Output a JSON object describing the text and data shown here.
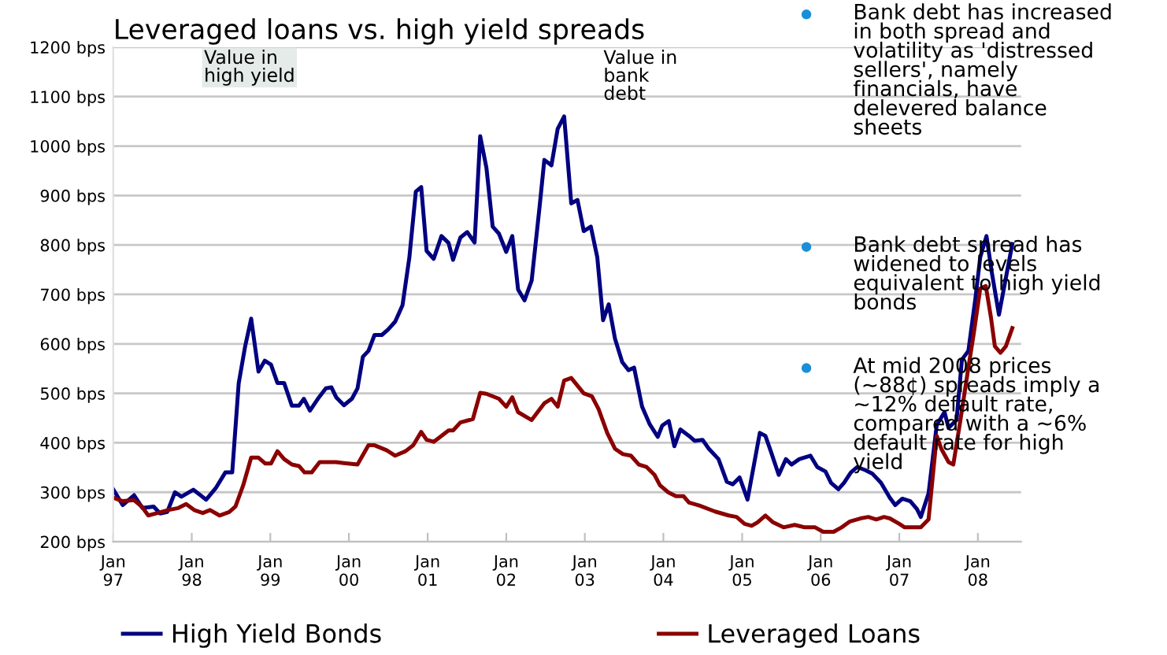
{
  "chart_data": {
    "type": "line",
    "title": "Leveraged loans vs. high yield spreads",
    "series": [
      {
        "name": "High Yield Bonds",
        "color": "#000080",
        "x": [
          "1997-01-01",
          "1997-02-14",
          "1997-04-08",
          "1997-05-17",
          "1997-07-08",
          "1997-08-07",
          "1997-09-09",
          "1997-10-15",
          "1997-11-14",
          "1998-01-08",
          "1998-03-09",
          "1998-04-22",
          "1998-06-06",
          "1998-07-08",
          "1998-08-07",
          "1998-09-06",
          "1998-10-04",
          "1998-11-07",
          "1998-12-06",
          "1999-01-04",
          "1999-02-03",
          "1999-03-06",
          "1999-04-11",
          "1999-05-14",
          "1999-06-06",
          "1999-07-04",
          "1999-08-10",
          "1999-09-16",
          "1999-10-12",
          "1999-11-03",
          "1999-12-09",
          "2000-01-15",
          "2000-02-10",
          "2000-03-06",
          "2000-04-01",
          "2000-04-29",
          "2000-06-02",
          "2000-07-01",
          "2000-08-03",
          "2000-09-06",
          "2000-10-08",
          "2000-11-07",
          "2000-12-02",
          "2000-12-27",
          "2001-01-29",
          "2001-03-06",
          "2001-04-08",
          "2001-04-29",
          "2001-06-02",
          "2001-07-04",
          "2001-08-07",
          "2001-09-02",
          "2001-10-01",
          "2001-10-30",
          "2001-11-28",
          "2002-01-01",
          "2002-01-29",
          "2002-02-25",
          "2002-03-27",
          "2002-04-29",
          "2002-06-06",
          "2002-06-27",
          "2002-07-30",
          "2002-08-28",
          "2002-09-27",
          "2002-10-30",
          "2002-11-28",
          "2002-12-27",
          "2003-01-29",
          "2003-02-28",
          "2003-03-27",
          "2003-04-22",
          "2003-05-21",
          "2003-06-24",
          "2003-07-23",
          "2003-08-18",
          "2003-09-24",
          "2003-10-30",
          "2003-12-06",
          "2003-12-27",
          "2004-01-26",
          "2004-02-21",
          "2004-03-20",
          "2004-04-29",
          "2004-05-25",
          "2004-07-01",
          "2004-07-30",
          "2004-09-13",
          "2004-10-22",
          "2004-11-18",
          "2004-12-20",
          "2005-01-26",
          "2005-03-24",
          "2005-04-19",
          "2005-05-14",
          "2005-06-20",
          "2005-07-23",
          "2005-08-18",
          "2005-09-24",
          "2005-11-14",
          "2005-12-16",
          "2006-01-23",
          "2006-02-18",
          "2006-03-24",
          "2006-04-19",
          "2006-05-21",
          "2006-06-20",
          "2006-07-26",
          "2006-08-28",
          "2006-10-08",
          "2006-11-18",
          "2006-12-13",
          "2007-01-15",
          "2007-02-21",
          "2007-03-24",
          "2007-04-11",
          "2007-05-17",
          "2007-06-24",
          "2007-07-30",
          "2007-08-18",
          "2007-09-24",
          "2007-10-19",
          "2007-11-18",
          "2007-12-20",
          "2008-01-12",
          "2008-02-10",
          "2008-03-06",
          "2008-04-08",
          "2008-05-03",
          "2008-06-09"
        ],
        "values": [
          306,
          274,
          294,
          268,
          271,
          257,
          260,
          300,
          291,
          305,
          285,
          308,
          340,
          340,
          520,
          595,
          651,
          544,
          566,
          558,
          521,
          521,
          475,
          475,
          489,
          465,
          489,
          510,
          512,
          492,
          476,
          489,
          510,
          574,
          586,
          618,
          618,
          629,
          645,
          678,
          775,
          908,
          917,
          788,
          772,
          818,
          804,
          770,
          815,
          826,
          805,
          1020,
          956,
          837,
          823,
          786,
          818,
          710,
          688,
          728,
          882,
          972,
          961,
          1035,
          1060,
          884,
          891,
          828,
          837,
          775,
          648,
          680,
          611,
          563,
          547,
          552,
          473,
          437,
          412,
          435,
          444,
          393,
          427,
          414,
          404,
          406,
          388,
          367,
          321,
          316,
          330,
          285,
          420,
          414,
          383,
          335,
          367,
          356,
          367,
          374,
          351,
          342,
          319,
          306,
          319,
          340,
          351,
          345,
          338,
          319,
          289,
          274,
          287,
          282,
          266,
          250,
          298,
          436,
          462,
          430,
          446,
          568,
          586,
          690,
          775,
          818,
          744,
          659,
          717,
          802
        ]
      },
      {
        "name": "Leveraged Loans",
        "color": "#8b0000",
        "x": [
          "1997-01-01",
          "1997-02-14",
          "1997-04-08",
          "1997-05-14",
          "1997-06-13",
          "1997-07-26",
          "1997-09-13",
          "1997-10-30",
          "1997-12-06",
          "1998-01-12",
          "1998-02-21",
          "1998-03-27",
          "1998-05-10",
          "1998-06-24",
          "1998-07-23",
          "1998-08-28",
          "1998-10-04",
          "1998-11-07",
          "1998-12-09",
          "1999-01-04",
          "1999-02-03",
          "1999-03-06",
          "1999-04-11",
          "1999-05-14",
          "1999-06-09",
          "1999-07-12",
          "1999-08-18",
          "1999-09-27",
          "1999-11-03",
          "1999-12-09",
          "2000-02-10",
          "2000-04-01",
          "2000-04-29",
          "2000-06-24",
          "2000-08-03",
          "2000-09-20",
          "2000-10-26",
          "2000-12-02",
          "2000-12-27",
          "2001-01-29",
          "2001-04-08",
          "2001-04-29",
          "2001-06-02",
          "2001-07-30",
          "2001-09-02",
          "2001-10-01",
          "2001-11-28",
          "2002-01-01",
          "2002-01-29",
          "2002-02-25",
          "2002-04-29",
          "2002-06-06",
          "2002-06-27",
          "2002-07-30",
          "2002-08-28",
          "2002-09-27",
          "2002-10-30",
          "2002-12-27",
          "2003-02-03",
          "2003-03-06",
          "2003-04-15",
          "2003-05-21",
          "2003-06-27",
          "2003-08-03",
          "2003-09-09",
          "2003-10-15",
          "2003-11-21",
          "2003-12-16",
          "2004-01-23",
          "2004-02-28",
          "2004-04-04",
          "2004-04-29",
          "2004-06-16",
          "2004-08-28",
          "2004-10-30",
          "2004-12-06",
          "2005-01-12",
          "2005-02-14",
          "2005-03-13",
          "2005-04-19",
          "2005-05-25",
          "2005-07-12",
          "2005-09-02",
          "2005-10-19",
          "2005-12-06",
          "2006-01-12",
          "2006-03-02",
          "2006-04-08",
          "2006-05-17",
          "2006-07-04",
          "2006-08-10",
          "2006-09-16",
          "2006-10-22",
          "2006-11-18",
          "2007-01-01",
          "2007-01-26",
          "2007-03-06",
          "2007-04-11",
          "2007-05-17",
          "2007-06-24",
          "2007-07-15",
          "2007-08-18",
          "2007-09-09",
          "2007-10-12",
          "2007-11-18",
          "2007-12-13",
          "2008-01-12",
          "2008-02-07",
          "2008-03-02",
          "2008-03-20",
          "2008-04-15",
          "2008-05-10",
          "2008-06-09"
        ],
        "values": [
          289,
          282,
          284,
          271,
          253,
          258,
          264,
          268,
          276,
          264,
          258,
          264,
          253,
          260,
          271,
          314,
          370,
          370,
          358,
          358,
          383,
          367,
          356,
          353,
          340,
          340,
          361,
          361,
          361,
          359,
          356,
          395,
          395,
          385,
          374,
          383,
          395,
          422,
          406,
          402,
          425,
          425,
          441,
          448,
          501,
          499,
          489,
          473,
          492,
          462,
          446,
          468,
          480,
          489,
          473,
          526,
          531,
          500,
          494,
          468,
          420,
          388,
          377,
          374,
          356,
          351,
          335,
          314,
          300,
          292,
          292,
          279,
          273,
          261,
          253,
          250,
          236,
          232,
          239,
          253,
          239,
          229,
          234,
          229,
          229,
          220,
          220,
          229,
          241,
          247,
          250,
          245,
          250,
          247,
          236,
          229,
          229,
          229,
          245,
          414,
          388,
          361,
          356,
          446,
          552,
          621,
          712,
          717,
          653,
          595,
          582,
          595,
          632
        ]
      }
    ],
    "xlim": [
      "1997-01-01",
      "2008-07-20"
    ],
    "xticks": [
      {
        "value": "1997-01",
        "label": "Jan\n97"
      },
      {
        "value": "1998-01",
        "label": "Jan\n98"
      },
      {
        "value": "1999-01",
        "label": "Jan\n99"
      },
      {
        "value": "2000-01",
        "label": "Jan\n00"
      },
      {
        "value": "2001-01",
        "label": "Jan\n01"
      },
      {
        "value": "2002-01",
        "label": "Jan\n02"
      },
      {
        "value": "2003-01",
        "label": "Jan\n03"
      },
      {
        "value": "2004-01",
        "label": "Jan\n04"
      },
      {
        "value": "2005-01",
        "label": "Jan\n05"
      },
      {
        "value": "2006-01",
        "label": "Jan\n06"
      },
      {
        "value": "2007-01",
        "label": "Jan\n07"
      },
      {
        "value": "2008-01",
        "label": "Jan\n08"
      }
    ],
    "ylim": [
      200,
      1200
    ],
    "yticks": [
      {
        "value": 200,
        "label": "200 bps"
      },
      {
        "value": 300,
        "label": "300 bps"
      },
      {
        "value": 400,
        "label": "400 bps"
      },
      {
        "value": 500,
        "label": "500 bps"
      },
      {
        "value": 600,
        "label": "600 bps"
      },
      {
        "value": 700,
        "label": "700 bps"
      },
      {
        "value": 800,
        "label": "800 bps"
      },
      {
        "value": 900,
        "label": "900 bps"
      },
      {
        "value": 1000,
        "label": "1000 bps"
      },
      {
        "value": 1100,
        "label": "1100 bps"
      },
      {
        "value": 1200,
        "label": "1200 bps"
      }
    ],
    "grid": "y",
    "legend": "bottom",
    "annotations": [
      "Value in\nhigh yield",
      "Value in\nbank\ndebt",
      "Bank debt has increased\nin both spread and\nvolatility as 'distressed\nsellers', namely\nfinancials, have\ndelevered balance\nsheets",
      "Bank debt spread has\nwidened to levels\nequivalent to high yield\nbonds",
      "At mid 2008 prices\n(~88¢) spreads imply a\n~12% default rate,\ncompared with a ~6%\ndefault rate for high\nyield"
    ]
  }
}
